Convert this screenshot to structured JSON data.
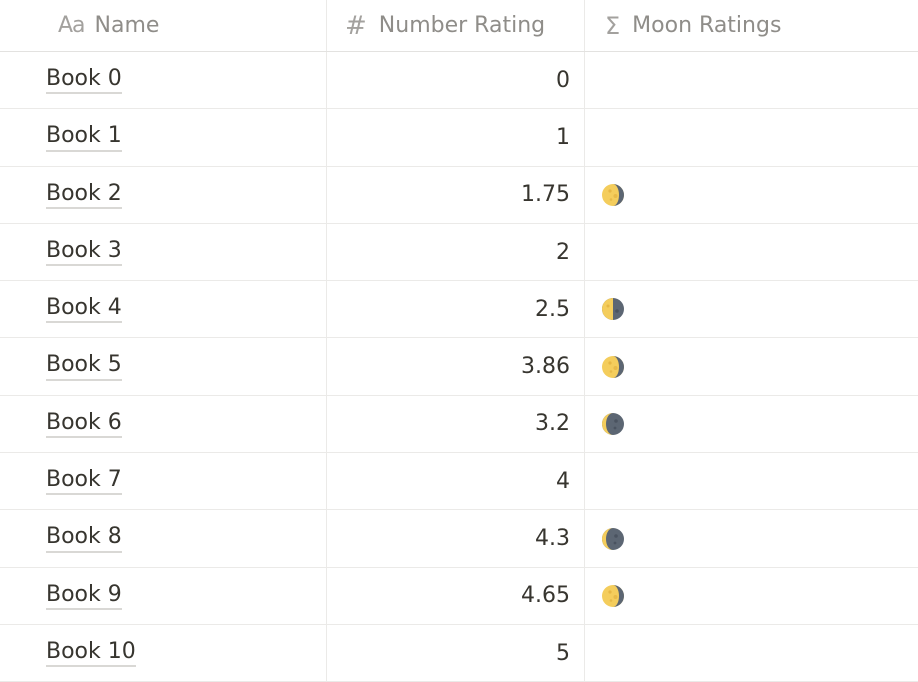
{
  "columns": {
    "name": {
      "icon": "text-type-icon",
      "icon_glyph": "Aa",
      "label": "Name"
    },
    "number": {
      "icon": "number-hash-icon",
      "icon_glyph": "#",
      "label": "Number Rating"
    },
    "moon": {
      "icon": "sigma-formula-icon",
      "icon_glyph": "Σ",
      "label": "Moon Ratings"
    }
  },
  "colors": {
    "moon_light": "#f4cd5c",
    "moon_dark": "#5c6673",
    "moon_crater_light": "#e0ae3c",
    "moon_crater_dark": "#4a5360"
  },
  "rows": [
    {
      "name": "Book 0",
      "rating": "0",
      "moon": null
    },
    {
      "name": "Book 1",
      "rating": "1",
      "moon": null
    },
    {
      "name": "Book 2",
      "rating": "1.75",
      "moon": "waxing-gibbous-moon-icon"
    },
    {
      "name": "Book 3",
      "rating": "2",
      "moon": null
    },
    {
      "name": "Book 4",
      "rating": "2.5",
      "moon": "first-quarter-moon-icon"
    },
    {
      "name": "Book 5",
      "rating": "3.86",
      "moon": "waxing-gibbous-moon-icon"
    },
    {
      "name": "Book 6",
      "rating": "3.2",
      "moon": "waxing-crescent-moon-icon"
    },
    {
      "name": "Book 7",
      "rating": "4",
      "moon": null
    },
    {
      "name": "Book 8",
      "rating": "4.3",
      "moon": "waxing-crescent-moon-icon"
    },
    {
      "name": "Book 9",
      "rating": "4.65",
      "moon": "waxing-gibbous-moon-icon"
    },
    {
      "name": "Book 10",
      "rating": "5",
      "moon": null
    }
  ]
}
